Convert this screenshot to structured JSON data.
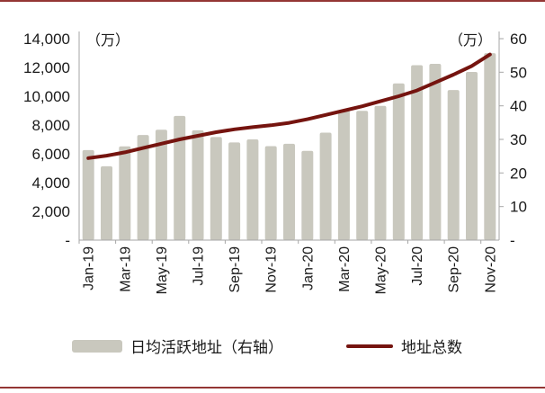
{
  "chart_data": {
    "type": "combo-bar-line",
    "title": "",
    "categories": [
      "Jan-19",
      "Feb-19",
      "Mar-19",
      "Apr-19",
      "May-19",
      "Jun-19",
      "Jul-19",
      "Aug-19",
      "Sep-19",
      "Oct-19",
      "Nov-19",
      "Dec-19",
      "Jan-20",
      "Feb-20",
      "Mar-20",
      "Apr-20",
      "May-20",
      "Jun-20",
      "Jul-20",
      "Aug-20",
      "Sep-20",
      "Oct-20",
      "Nov-20"
    ],
    "x_tick_labels": [
      "Jan-19",
      "Mar-19",
      "May-19",
      "Jul-19",
      "Sep-19",
      "Nov-19",
      "Jan-20",
      "Mar-20",
      "May-20",
      "Jul-20",
      "Sep-20",
      "Nov-20"
    ],
    "series": [
      {
        "name": "日均活跃地址（右轴）",
        "type": "bar",
        "axis": "right",
        "color": "#C9C8BE",
        "values": [
          26.8,
          22.0,
          27.9,
          31.3,
          32.9,
          37.0,
          32.7,
          30.7,
          29.1,
          30.0,
          28.0,
          28.7,
          26.6,
          32.0,
          38.6,
          38.5,
          40.0,
          46.7,
          52.1,
          52.5,
          44.7,
          50.1,
          55.7
        ]
      },
      {
        "name": "地址总数",
        "type": "line",
        "axis": "left",
        "color": "#75140F",
        "values": [
          5700,
          5870,
          6100,
          6400,
          6700,
          7000,
          7250,
          7500,
          7700,
          7850,
          7980,
          8150,
          8400,
          8700,
          9000,
          9300,
          9650,
          10000,
          10400,
          10950,
          11500,
          12100,
          12900
        ]
      }
    ],
    "left_axis": {
      "title": "（万）",
      "min": 0,
      "max": 14000,
      "step": 2000,
      "tick_labels": [
        "14,000",
        "12,000",
        "10,000",
        "8,000",
        "6,000",
        "4,000",
        "2,000",
        "-"
      ]
    },
    "right_axis": {
      "title": "（万）",
      "min": 0,
      "max": 60,
      "step": 10,
      "tick_labels": [
        "60",
        "50",
        "40",
        "30",
        "20",
        "10",
        "-"
      ]
    },
    "grid": false,
    "legend_position": "bottom",
    "axis_line_color": "#a6a6a6",
    "text_color": "#1a1a1a"
  },
  "frame": {
    "rule_color": "#943634"
  }
}
